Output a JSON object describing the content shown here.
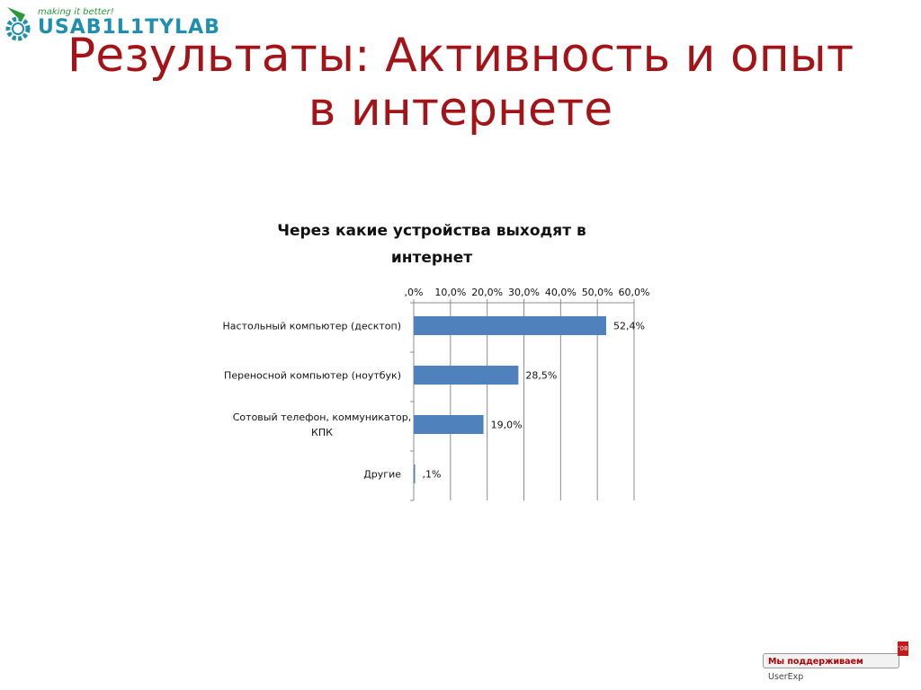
{
  "logo": {
    "tagline": "making it better!",
    "name": "USAB1L1TYLAB"
  },
  "slide": {
    "title": "Результаты: Активность и опыт в интернете"
  },
  "chart_data": {
    "type": "bar",
    "orientation": "horizontal",
    "title": "Через какие устройства выходят в интернет",
    "categories": [
      [
        "Настольный компьютер (десктоп)"
      ],
      [
        "Переносной компьютер (ноутбук)"
      ],
      [
        "Сотовый телефон, коммуникатор,",
        "КПК"
      ],
      [
        "Другие"
      ]
    ],
    "values": [
      52.4,
      28.5,
      19.0,
      0.1
    ],
    "value_labels": [
      "52,4%",
      "28,5%",
      "19,0%",
      ",1%"
    ],
    "x_ticks": [
      0,
      10,
      20,
      30,
      40,
      50,
      60
    ],
    "x_tick_labels": [
      ",0%",
      "10,0%",
      "20,0%",
      "30,0%",
      "40,0%",
      "50,0%",
      "60,0%"
    ],
    "xlim": [
      0,
      60
    ],
    "x_axis_position": "top",
    "grid": true,
    "bar_color": "#4f81bd",
    "grid_color": "#8c8c8c"
  },
  "badge": {
    "text_a": "Мы поддерживаем ",
    "text_b": "UserExp",
    "corner": "'08"
  },
  "colors": {
    "title": "#a31317",
    "logo_blue": "#1f8fb0",
    "logo_green": "#2a9a3a"
  }
}
